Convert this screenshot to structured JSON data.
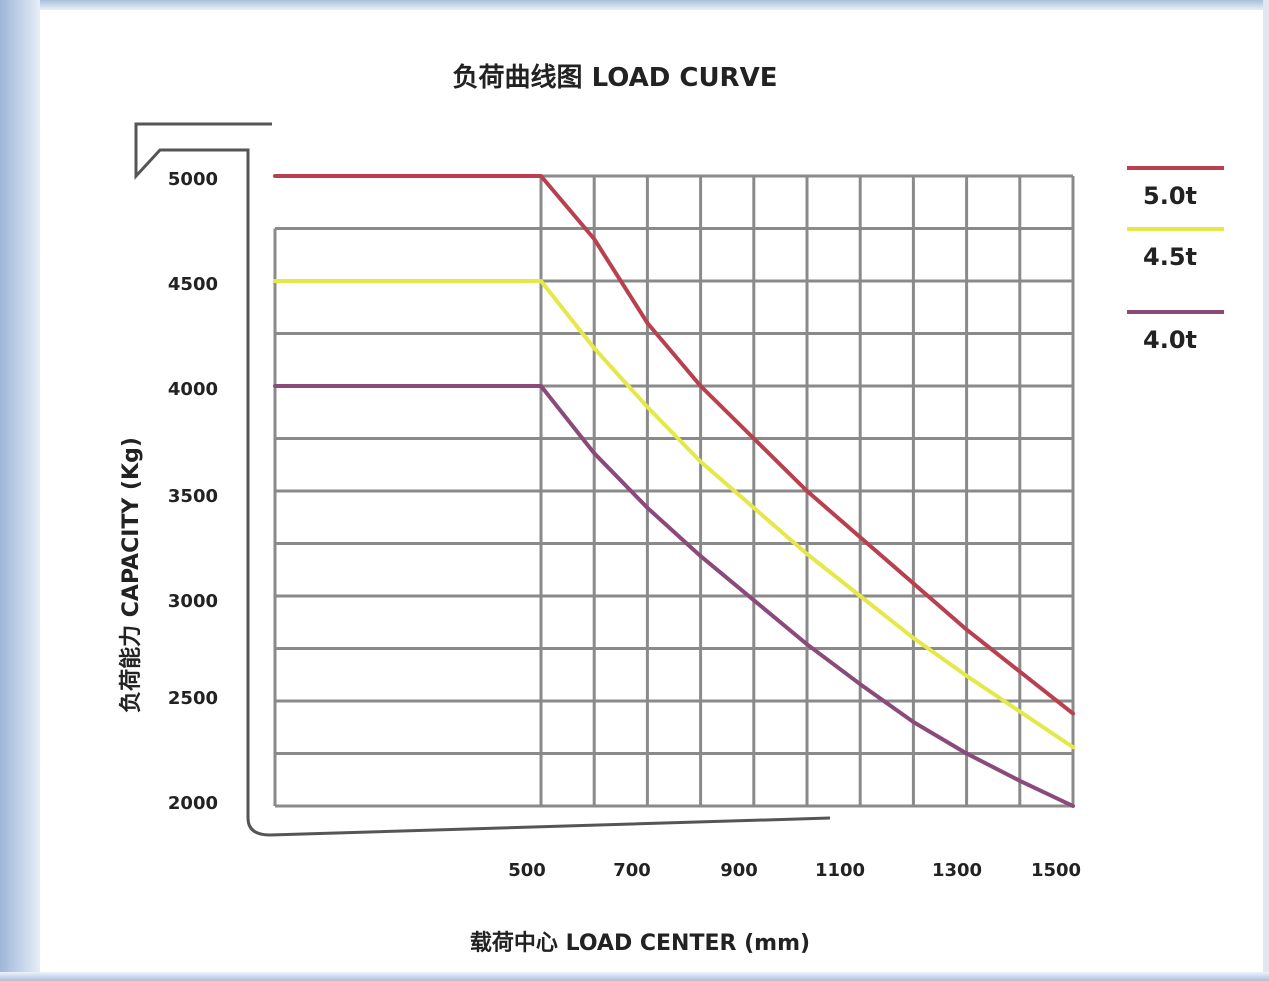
{
  "chart_data": {
    "type": "line",
    "title": "负荷曲线图 LOAD CURVE",
    "xlabel": "载荷中心 LOAD CENTER (mm)",
    "ylabel": "负荷能力 CAPACITY (Kg)",
    "x_ticks": [
      "500",
      "700",
      "900",
      "1100",
      "1300",
      "1500"
    ],
    "y_ticks": [
      "5000",
      "4500",
      "4000",
      "3500",
      "3000",
      "2500",
      "2000"
    ],
    "xlim": [
      0,
      1500
    ],
    "ylim": [
      2000,
      5000
    ],
    "grid": true,
    "legend_position": "right",
    "series": [
      {
        "name": "5.0t",
        "color": "#b8404f",
        "x": [
          0,
          500,
          600,
          700,
          800,
          900,
          1000,
          1100,
          1200,
          1300,
          1400,
          1500
        ],
        "y": [
          5000,
          5000,
          4700,
          4300,
          4000,
          3750,
          3500,
          3280,
          3060,
          2840,
          2640,
          2440
        ]
      },
      {
        "name": "4.5t",
        "color": "#e6e84a",
        "x": [
          0,
          500,
          600,
          700,
          800,
          900,
          1000,
          1100,
          1200,
          1300,
          1400,
          1500
        ],
        "y": [
          4500,
          4500,
          4180,
          3900,
          3640,
          3420,
          3200,
          3000,
          2800,
          2620,
          2450,
          2280
        ]
      },
      {
        "name": "4.0t",
        "color": "#8a4a7a",
        "x": [
          0,
          500,
          600,
          700,
          800,
          900,
          1000,
          1100,
          1200,
          1300,
          1400,
          1500
        ],
        "y": [
          4000,
          4000,
          3680,
          3420,
          3190,
          2980,
          2770,
          2580,
          2400,
          2250,
          2120,
          2000
        ]
      }
    ]
  }
}
